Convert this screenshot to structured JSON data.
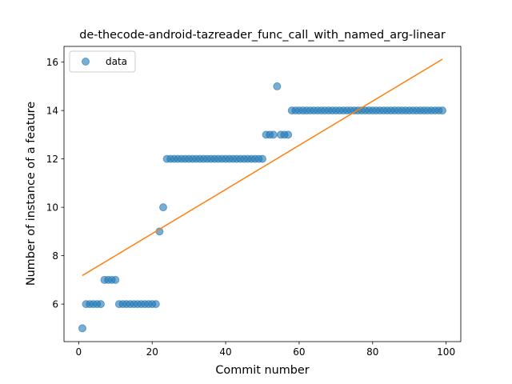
{
  "chart_data": {
    "type": "scatter",
    "title": "de-thecode-android-tazreader_func_call_with_named_arg-linear",
    "xlabel": "Commit number",
    "ylabel": "Number of instance of a feature",
    "xlim": [
      -4,
      104
    ],
    "ylim": [
      4.45,
      16.65
    ],
    "xticks": [
      0,
      20,
      40,
      60,
      80,
      100
    ],
    "yticks": [
      6,
      8,
      10,
      12,
      14,
      16
    ],
    "legend": {
      "position": "top-left",
      "entries": [
        "data"
      ]
    },
    "grid": false,
    "colors": {
      "points": "#1f77b4",
      "fit_line": "#ff7f0e"
    },
    "series": [
      {
        "name": "data",
        "kind": "points",
        "x": [
          1,
          2,
          3,
          4,
          5,
          6,
          7,
          8,
          9,
          10,
          11,
          12,
          13,
          14,
          15,
          16,
          17,
          18,
          19,
          20,
          21,
          22,
          23,
          24,
          25,
          26,
          27,
          28,
          29,
          30,
          31,
          32,
          33,
          34,
          35,
          36,
          37,
          38,
          39,
          40,
          41,
          42,
          43,
          44,
          45,
          46,
          47,
          48,
          49,
          50,
          51,
          52,
          53,
          54,
          55,
          56,
          57,
          58,
          59,
          60,
          61,
          62,
          63,
          64,
          65,
          66,
          67,
          68,
          69,
          70,
          71,
          72,
          73,
          74,
          75,
          76,
          77,
          78,
          79,
          80,
          81,
          82,
          83,
          84,
          85,
          86,
          87,
          88,
          89,
          90,
          91,
          92,
          93,
          94,
          95,
          96,
          97,
          98,
          99
        ],
        "y": [
          5,
          6,
          6,
          6,
          6,
          6,
          7,
          7,
          7,
          7,
          6,
          6,
          6,
          6,
          6,
          6,
          6,
          6,
          6,
          6,
          6,
          9,
          10,
          12,
          12,
          12,
          12,
          12,
          12,
          12,
          12,
          12,
          12,
          12,
          12,
          12,
          12,
          12,
          12,
          12,
          12,
          12,
          12,
          12,
          12,
          12,
          12,
          12,
          12,
          12,
          13,
          13,
          13,
          15,
          13,
          13,
          13,
          14,
          14,
          14,
          14,
          14,
          14,
          14,
          14,
          14,
          14,
          14,
          14,
          14,
          14,
          14,
          14,
          14,
          14,
          14,
          14,
          14,
          14,
          14,
          14,
          14,
          14,
          14,
          14,
          14,
          14,
          14,
          14,
          14,
          14,
          14,
          14,
          14,
          14,
          14,
          14,
          14,
          14
        ]
      },
      {
        "kind": "fit-line",
        "x": [
          1,
          99
        ],
        "y": [
          7.18,
          16.12
        ]
      }
    ]
  }
}
